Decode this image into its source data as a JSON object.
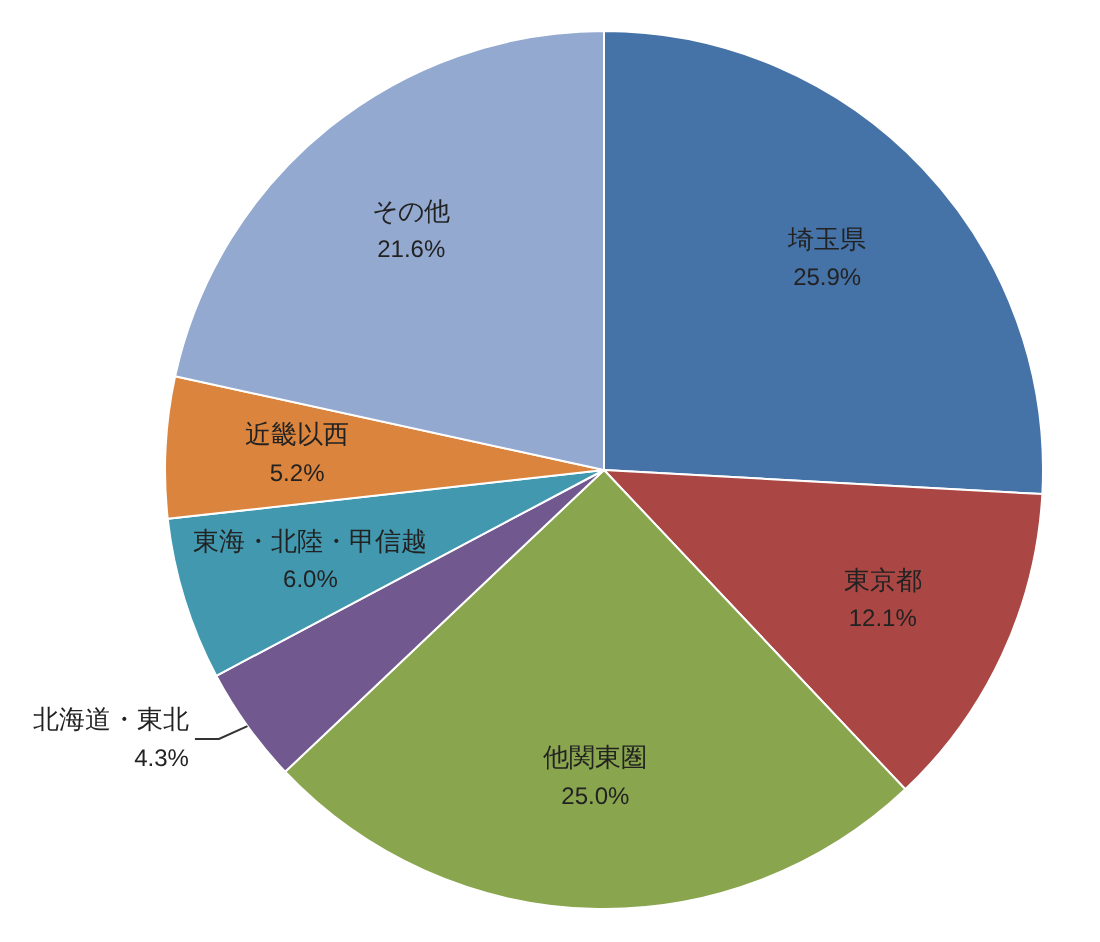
{
  "chart_data": {
    "type": "pie",
    "categories": [
      "埼玉県",
      "東京都",
      "他関東圏",
      "北海道・東北",
      "東海・北陸・甲信越",
      "近畿以西",
      "その他"
    ],
    "values": [
      25.9,
      12.1,
      25.0,
      4.3,
      6.0,
      5.2,
      21.6
    ],
    "value_labels": [
      "25.9%",
      "12.1%",
      "25.0%",
      "4.3%",
      "6.0%",
      "5.2%",
      "21.6%"
    ],
    "colors": [
      "#4572a7",
      "#aa4643",
      "#89a54e",
      "#71588f",
      "#4198af",
      "#db843d",
      "#93a9cf"
    ],
    "legend": false
  }
}
